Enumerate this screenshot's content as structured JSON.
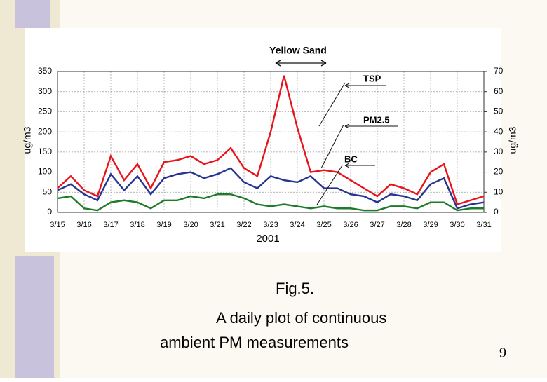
{
  "chart_data": {
    "type": "line",
    "annotations": {
      "event": "Yellow Sand",
      "tsp": "TSP",
      "pm": "PM2.5",
      "bc": "BC"
    },
    "x_label": "2001",
    "y_label": "ug/m3",
    "y2_label": "ug/m3",
    "x": [
      0,
      0.5,
      1,
      1.5,
      2,
      2.5,
      3,
      3.5,
      4,
      4.5,
      5,
      5.5,
      6,
      6.5,
      7,
      7.5,
      8,
      8.5,
      9,
      9.5,
      10,
      10.5,
      11,
      11.5,
      12,
      12.5,
      13,
      13.5,
      14,
      14.5,
      15,
      15.5,
      16
    ],
    "xlim": [
      0,
      16
    ],
    "xticks": [
      {
        "value": 0,
        "label": "3/15"
      },
      {
        "value": 1,
        "label": "3/16"
      },
      {
        "value": 2,
        "label": "3/17"
      },
      {
        "value": 3,
        "label": "3/18"
      },
      {
        "value": 4,
        "label": "3/19"
      },
      {
        "value": 5,
        "label": "3/20"
      },
      {
        "value": 6,
        "label": "3/21"
      },
      {
        "value": 7,
        "label": "3/22"
      },
      {
        "value": 8,
        "label": "3/23"
      },
      {
        "value": 9,
        "label": "3/24"
      },
      {
        "value": 10,
        "label": "3/25"
      },
      {
        "value": 11,
        "label": "3/26"
      },
      {
        "value": 12,
        "label": "3/27"
      },
      {
        "value": 13,
        "label": "3/28"
      },
      {
        "value": 14,
        "label": "3/29"
      },
      {
        "value": 15,
        "label": "3/30"
      },
      {
        "value": 16,
        "label": "3/31"
      }
    ],
    "ylim": [
      0,
      350
    ],
    "yticks": [
      0,
      50,
      100,
      150,
      200,
      250,
      300,
      350
    ],
    "y2lim": [
      0,
      70
    ],
    "y2ticks": [
      0,
      10,
      20,
      30,
      40,
      50,
      60,
      70
    ],
    "grid": true,
    "series": [
      {
        "name": "TSP",
        "color": "#e8141c",
        "values": [
          60,
          90,
          55,
          40,
          140,
          80,
          120,
          60,
          125,
          130,
          140,
          120,
          130,
          160,
          110,
          90,
          200,
          340,
          210,
          100,
          105,
          100,
          80,
          60,
          40,
          70,
          60,
          45,
          100,
          120,
          20,
          30,
          40
        ]
      },
      {
        "name": "PM2.5",
        "color": "#26348f",
        "values": [
          55,
          70,
          45,
          30,
          95,
          55,
          90,
          45,
          85,
          95,
          100,
          85,
          95,
          110,
          75,
          60,
          90,
          80,
          75,
          90,
          60,
          60,
          45,
          40,
          25,
          45,
          40,
          30,
          70,
          85,
          10,
          20,
          25
        ]
      },
      {
        "name": "BC",
        "color": "#1f7a2a",
        "axis": "y2",
        "values": [
          7,
          8,
          2,
          1,
          5,
          6,
          5,
          2,
          6,
          6,
          8,
          7,
          9,
          9,
          7,
          4,
          3,
          4,
          3,
          2,
          3,
          2,
          2,
          1,
          1,
          3,
          3,
          2,
          5,
          5,
          1,
          2,
          2
        ]
      }
    ]
  },
  "caption": [
    "Fig.5.",
    "A daily plot of continuous",
    "ambient PM measurements"
  ],
  "page_number": "9"
}
